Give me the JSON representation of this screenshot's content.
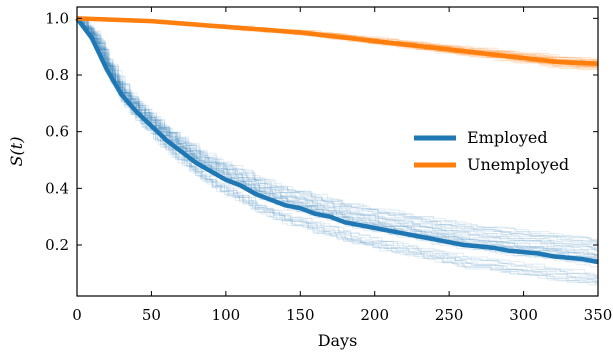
{
  "chart_data": {
    "type": "line",
    "xlabel": "Days",
    "ylabel": "S(t)",
    "xlim": [
      0,
      350
    ],
    "ylim": [
      0.02,
      1.04
    ],
    "x_ticks": [
      0,
      50,
      100,
      150,
      200,
      250,
      300,
      350
    ],
    "y_ticks": [
      0.2,
      0.4,
      0.6,
      0.8,
      1.0
    ],
    "x_tick_labels": [
      "0",
      "50",
      "100",
      "150",
      "200",
      "250",
      "300",
      "350"
    ],
    "y_tick_labels": [
      "0.2",
      "0.4",
      "0.6",
      "0.8",
      "1.0"
    ],
    "grid": false,
    "legend": "right",
    "series": [
      {
        "name": "Employed",
        "color": "#1f77b4",
        "x": [
          0,
          10,
          20,
          30,
          40,
          50,
          60,
          70,
          80,
          90,
          100,
          110,
          120,
          130,
          140,
          150,
          160,
          170,
          180,
          190,
          200,
          210,
          220,
          230,
          240,
          250,
          260,
          270,
          280,
          290,
          300,
          310,
          320,
          330,
          340,
          350
        ],
        "y": [
          1.0,
          0.93,
          0.82,
          0.73,
          0.67,
          0.62,
          0.57,
          0.53,
          0.49,
          0.46,
          0.43,
          0.41,
          0.38,
          0.36,
          0.34,
          0.33,
          0.31,
          0.3,
          0.28,
          0.27,
          0.26,
          0.25,
          0.24,
          0.23,
          0.22,
          0.21,
          0.2,
          0.195,
          0.19,
          0.18,
          0.175,
          0.17,
          0.16,
          0.155,
          0.15,
          0.14
        ]
      },
      {
        "name": "Unemployed",
        "color": "#ff7f0e",
        "x": [
          0,
          25,
          50,
          75,
          100,
          125,
          150,
          175,
          200,
          225,
          250,
          275,
          300,
          325,
          350
        ],
        "y": [
          1.0,
          0.995,
          0.99,
          0.98,
          0.97,
          0.96,
          0.95,
          0.935,
          0.92,
          0.905,
          0.89,
          0.875,
          0.86,
          0.845,
          0.84
        ]
      }
    ]
  }
}
